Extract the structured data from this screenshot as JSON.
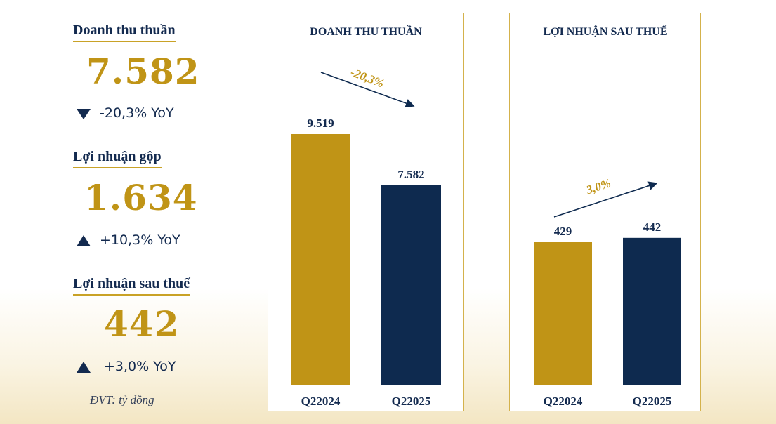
{
  "kpis": [
    {
      "label": "Doanh thu thuần",
      "value": "7.582",
      "direction": "down",
      "change": "-20,3% YoY"
    },
    {
      "label": "Lợi nhuận gộp",
      "value": "1.634",
      "direction": "up",
      "change": "+10,3% YoY"
    },
    {
      "label": "Lợi nhuận sau thuế",
      "value": "442",
      "direction": "up",
      "change": "+3,0% YoY"
    }
  ],
  "unit_note": "ĐVT: tỷ đồng",
  "colors": {
    "gold": "#c09416",
    "navy": "#0e2a4f",
    "border": "#d4b24c"
  },
  "chart_data": [
    {
      "type": "bar",
      "title": "DOANH THU THUẦN",
      "categories": [
        "Q22024",
        "Q22025"
      ],
      "values": [
        9519,
        7582
      ],
      "data_labels": [
        "9.519",
        "7.582"
      ],
      "bar_colors": [
        "#c09416",
        "#0e2a4f"
      ],
      "trend_label": "-20,3%",
      "trend_direction": "down",
      "ylim": [
        0,
        12000
      ]
    },
    {
      "type": "bar",
      "title": "LỢI NHUẬN SAU THUẾ",
      "categories": [
        "Q22024",
        "Q22025"
      ],
      "values": [
        429,
        442
      ],
      "data_labels": [
        "429",
        "442"
      ],
      "bar_colors": [
        "#c09416",
        "#0e2a4f"
      ],
      "trend_label": "3,0%",
      "trend_direction": "up",
      "ylim": [
        0,
        860
      ]
    }
  ]
}
